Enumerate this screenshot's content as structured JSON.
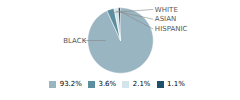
{
  "chart_data": {
    "type": "pie",
    "categories": [
      "BLACK",
      "WHITE",
      "ASIAN",
      "HISPANIC"
    ],
    "values": [
      93.2,
      3.6,
      2.1,
      1.1
    ],
    "value_labels": [
      "93.2%",
      "3.6%",
      "2.1%",
      "1.1%"
    ],
    "colors": [
      "#9ab5c2",
      "#5b8fa0",
      "#d4e4eb",
      "#1e4f6b"
    ],
    "legend": "bottom"
  }
}
